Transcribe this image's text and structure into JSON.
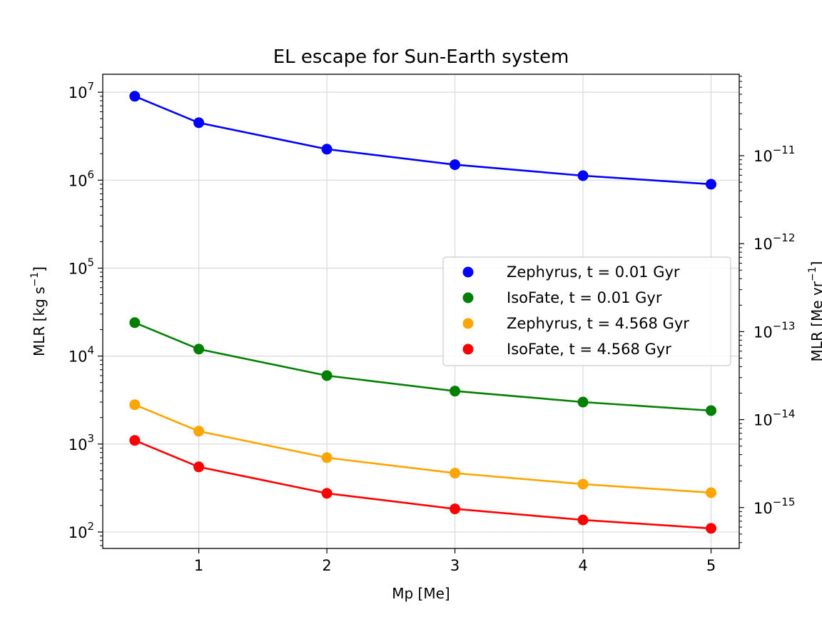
{
  "chart_data": {
    "type": "line",
    "title": "EL escape for Sun-Earth system",
    "xlabel": "Mp [Me]",
    "ylabel": "MLR [kg s$^{-1}$]",
    "ylabel_parts": {
      "base": "MLR [kg s",
      "sup": "−1",
      "end": "]"
    },
    "ylabel_right": "MLR [Me yr$^{-1}$]",
    "ylabel_right_parts": {
      "base": "MLR [Me yr",
      "sup": "−1",
      "end": "]"
    },
    "xlim": [
      0.25,
      5.22
    ],
    "ylim": [
      65,
      16000000
    ],
    "yscale": "log",
    "ylim_right": [
      3.43e-16,
      8.43e-11
    ],
    "yscale_right": "log",
    "x_ticks": [
      1,
      2,
      3,
      4,
      5
    ],
    "x_tick_labels": [
      "1",
      "2",
      "3",
      "4",
      "5"
    ],
    "y_ticks": [
      100,
      1000,
      10000,
      100000,
      1000000,
      10000000
    ],
    "y_tick_labels": [
      {
        "base": "10",
        "exp": "2"
      },
      {
        "base": "10",
        "exp": "3"
      },
      {
        "base": "10",
        "exp": "4"
      },
      {
        "base": "10",
        "exp": "5"
      },
      {
        "base": "10",
        "exp": "6"
      },
      {
        "base": "10",
        "exp": "7"
      }
    ],
    "y_ticks_right": [
      1e-15,
      1e-14,
      1e-13,
      1e-12,
      1e-11
    ],
    "y_tick_labels_right": [
      {
        "base": "10",
        "exp": "−15"
      },
      {
        "base": "10",
        "exp": "−14"
      },
      {
        "base": "10",
        "exp": "−13"
      },
      {
        "base": "10",
        "exp": "−12"
      },
      {
        "base": "10",
        "exp": "−11"
      }
    ],
    "grid": true,
    "legend_position": "center-right",
    "x": [
      0.5,
      1,
      2,
      3,
      4,
      5
    ],
    "series": [
      {
        "name": "Zephyrus, t = 0.01 Gyr",
        "color": "#0000ff",
        "values": [
          9000000,
          4500000,
          2250000,
          1500000,
          1125000,
          900000
        ]
      },
      {
        "name": "IsoFate, t = 0.01 Gyr",
        "color": "#008000",
        "values": [
          24000,
          12000,
          6000,
          4000,
          3000,
          2400
        ]
      },
      {
        "name": "Zephyrus, t = 4.568 Gyr",
        "color": "#ffa500",
        "values": [
          2800,
          1400,
          700,
          467,
          350,
          280
        ]
      },
      {
        "name": "IsoFate, t = 4.568 Gyr",
        "color": "#ff0000",
        "values": [
          1100,
          550,
          275,
          183,
          137,
          110
        ]
      }
    ]
  }
}
